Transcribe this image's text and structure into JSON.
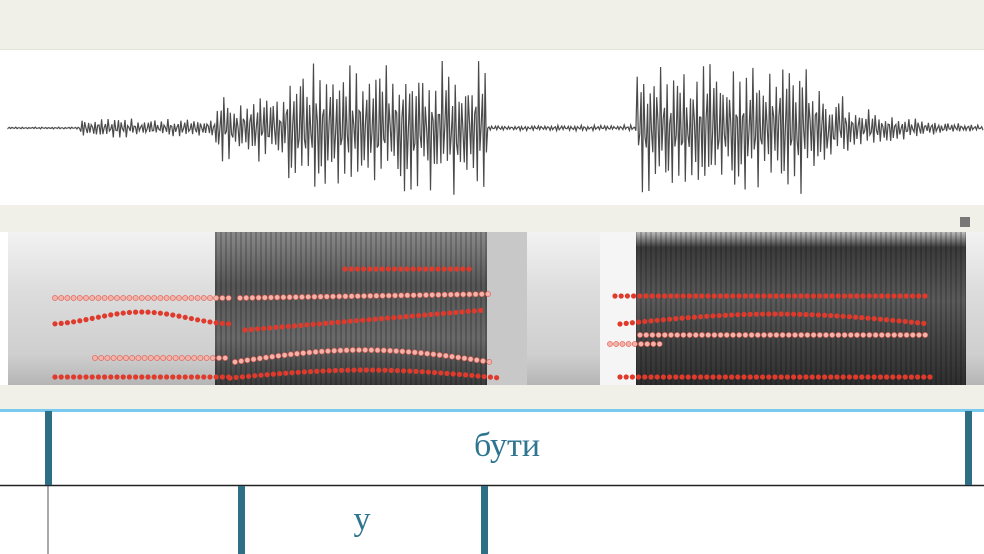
{
  "tiers": [
    {
      "intervals": [
        {
          "text": "бути"
        }
      ]
    },
    {
      "intervals": [
        {
          "text": "у"
        }
      ]
    }
  ]
}
